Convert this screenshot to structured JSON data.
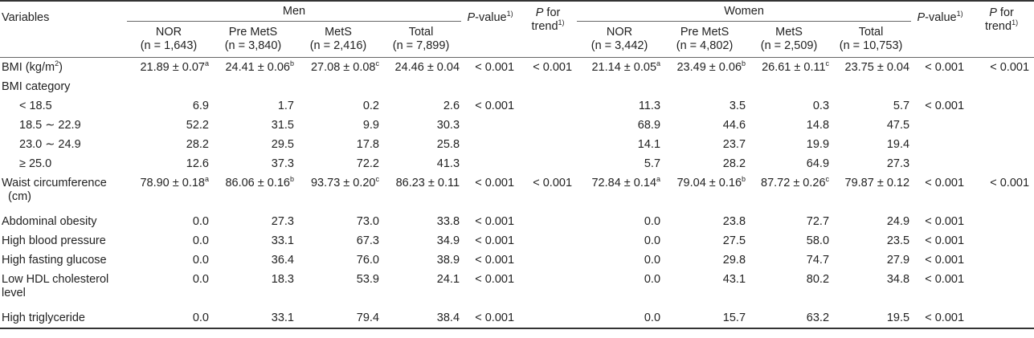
{
  "header": {
    "variables": "Variables",
    "men": "Men",
    "women": "Women",
    "pvalue_it": "P",
    "pvalue_rest": "-value",
    "pvalue_sup": "1)",
    "ptrend_it": "P",
    "ptrend_for": " for",
    "ptrend_trend": "trend",
    "ptrend_sup": "1)",
    "men_cols": [
      {
        "name": "NOR",
        "n": "(n = 1,643)"
      },
      {
        "name": "Pre MetS",
        "n": "(n = 3,840)"
      },
      {
        "name": "MetS",
        "n": "(n = 2,416)"
      },
      {
        "name": "Total",
        "n": "(n = 7,899)"
      }
    ],
    "women_cols": [
      {
        "name": "NOR",
        "n": "(n = 3,442)"
      },
      {
        "name": "Pre MetS",
        "n": "(n = 4,802)"
      },
      {
        "name": "MetS",
        "n": "(n = 2,509)"
      },
      {
        "name": "Total",
        "n": "(n = 10,753)"
      }
    ]
  },
  "rows": {
    "bmi": {
      "label": "BMI (kg/m",
      "label_sup": "2",
      "label_end": ")",
      "men": [
        {
          "v": "21.89 ± 0.07",
          "s": "a"
        },
        {
          "v": "24.41 ± 0.06",
          "s": "b"
        },
        {
          "v": "27.08 ± 0.08",
          "s": "c"
        },
        {
          "v": "24.46 ± 0.04",
          "s": ""
        }
      ],
      "men_p": "< 0.001",
      "men_trend": "< 0.001",
      "women": [
        {
          "v": "21.14 ± 0.05",
          "s": "a"
        },
        {
          "v": "23.49 ± 0.06",
          "s": "b"
        },
        {
          "v": "26.61 ± 0.11",
          "s": "c"
        },
        {
          "v": "23.75 ± 0.04",
          "s": ""
        }
      ],
      "women_p": "< 0.001",
      "women_trend": "< 0.001"
    },
    "bmi_category": {
      "label": "BMI category"
    },
    "cat_lt185": {
      "label": "< 18.5",
      "men": [
        "6.9",
        "1.7",
        "0.2",
        "2.6"
      ],
      "men_p": "< 0.001",
      "women": [
        "11.3",
        "3.5",
        "0.3",
        "5.7"
      ],
      "women_p": "< 0.001"
    },
    "cat_185": {
      "label": "18.5 ∼ 22.9",
      "men": [
        "52.2",
        "31.5",
        "9.9",
        "30.3"
      ],
      "women": [
        "68.9",
        "44.6",
        "14.8",
        "47.5"
      ]
    },
    "cat_230": {
      "label": "23.0 ∼ 24.9",
      "men": [
        "28.2",
        "29.5",
        "17.8",
        "25.8"
      ],
      "women": [
        "14.1",
        "23.7",
        "19.9",
        "19.4"
      ]
    },
    "cat_ge25": {
      "label": "≥ 25.0",
      "men": [
        "12.6",
        "37.3",
        "72.2",
        "41.3"
      ],
      "women": [
        "5.7",
        "28.2",
        "64.9",
        "27.3"
      ]
    },
    "waist": {
      "label": "Waist circumference",
      "label2": "(cm)",
      "men": [
        {
          "v": "78.90 ± 0.18",
          "s": "a"
        },
        {
          "v": "86.06 ± 0.16",
          "s": "b"
        },
        {
          "v": "93.73 ± 0.20",
          "s": "c"
        },
        {
          "v": "86.23 ± 0.11",
          "s": ""
        }
      ],
      "men_p": "< 0.001",
      "men_trend": "< 0.001",
      "women": [
        {
          "v": "72.84 ± 0.14",
          "s": "a"
        },
        {
          "v": "79.04 ± 0.16",
          "s": "b"
        },
        {
          "v": "87.72 ± 0.26",
          "s": "c"
        },
        {
          "v": "79.87 ± 0.12",
          "s": ""
        }
      ],
      "women_p": "< 0.001",
      "women_trend": "< 0.001"
    },
    "abdominal": {
      "label": "Abdominal obesity",
      "men": [
        "0.0",
        "27.3",
        "73.0",
        "33.8"
      ],
      "men_p": "< 0.001",
      "women": [
        "0.0",
        "23.8",
        "72.7",
        "24.9"
      ],
      "women_p": "< 0.001"
    },
    "hbp": {
      "label": "High blood pressure",
      "men": [
        "0.0",
        "33.1",
        "67.3",
        "34.9"
      ],
      "men_p": "< 0.001",
      "women": [
        "0.0",
        "27.5",
        "58.0",
        "23.5"
      ],
      "women_p": "< 0.001"
    },
    "hfg": {
      "label": "High fasting glucose",
      "men": [
        "0.0",
        "36.4",
        "76.0",
        "38.9"
      ],
      "men_p": "< 0.001",
      "women": [
        "0.0",
        "29.8",
        "74.7",
        "27.9"
      ],
      "women_p": "< 0.001"
    },
    "hdl": {
      "label": "Low HDL cholesterol",
      "label2": "level",
      "men": [
        "0.0",
        "18.3",
        "53.9",
        "24.1"
      ],
      "men_p": "< 0.001",
      "women": [
        "0.0",
        "43.1",
        "80.2",
        "34.8"
      ],
      "women_p": "< 0.001"
    },
    "tg": {
      "label": "High triglyceride",
      "men": [
        "0.0",
        "33.1",
        "79.4",
        "38.4"
      ],
      "men_p": "< 0.001",
      "women": [
        "0.0",
        "15.7",
        "63.2",
        "19.5"
      ],
      "women_p": "< 0.001"
    }
  }
}
